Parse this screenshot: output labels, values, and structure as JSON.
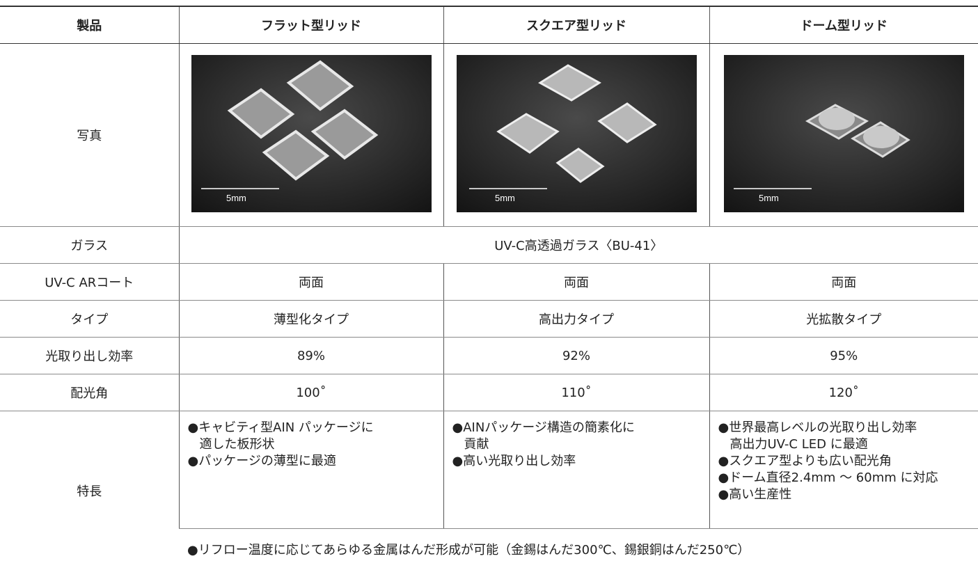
{
  "table": {
    "header": [
      "製品",
      "フラット型リッド",
      "スクエア型リッド",
      "ドーム型リッド"
    ],
    "photo_row": {
      "label": "写真",
      "scale_labels": [
        "5mm",
        "5mm",
        "5mm"
      ]
    },
    "glass": {
      "label": "ガラス",
      "value": "UV-C高透過ガラス〈BU-41〉"
    },
    "rows": [
      [
        "UV-C ARコート",
        "両面",
        "両面",
        "両面"
      ],
      [
        "タイプ",
        "薄型化タイプ",
        "高出力タイプ",
        "光拡散タイプ"
      ],
      [
        "光取り出し効率",
        "89%",
        "92%",
        "95%"
      ],
      [
        "配光角",
        "100˚",
        "110˚",
        "120˚"
      ]
    ],
    "features": {
      "label": "特長",
      "columns": [
        [
          "●キャビティ型AIN パッケージに",
          "適した板形状",
          "●パッケージの薄型に最適"
        ],
        [
          "●AINパッケージ構造の簡素化に",
          "貢献",
          "●高い光取り出し効率"
        ],
        [
          "●世界最高レベルの光取り出し効率",
          "高出力UV-C LED に最適",
          "●スクエア型よりも広い配光角",
          "●ドーム直径2.4mm ～ 60mm に対応",
          "●高い生産性"
        ]
      ],
      "common": "●リフロー温度に応じてあらゆる金属はんだ形成が可能（金錫はんだ300℃、錫銀銅はんだ250℃）"
    }
  }
}
